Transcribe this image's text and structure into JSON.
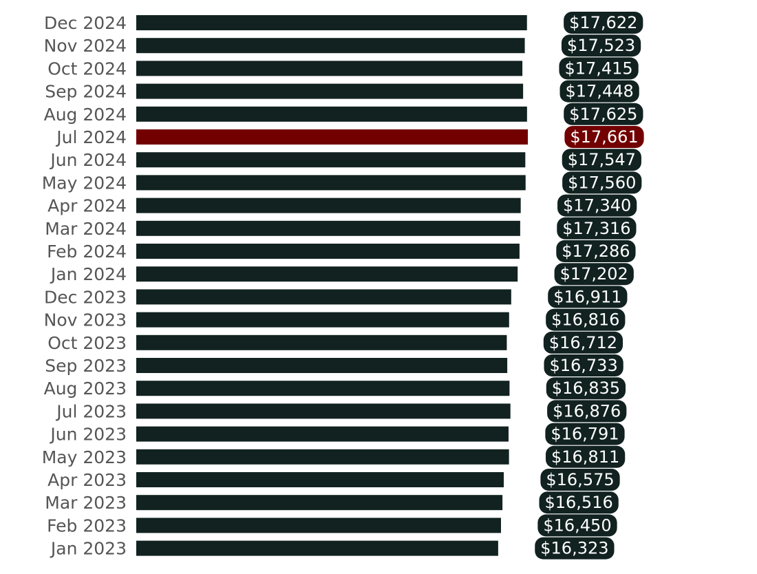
{
  "chart_data": {
    "type": "bar",
    "orientation": "horizontal",
    "title": "",
    "xlabel": "",
    "ylabel": "",
    "grid": false,
    "legend": "none",
    "xlim": [
      0,
      17661
    ],
    "categories": [
      "Dec 2024",
      "Nov 2024",
      "Oct 2024",
      "Sep 2024",
      "Aug 2024",
      "Jul 2024",
      "Jun 2024",
      "May 2024",
      "Apr 2024",
      "Mar 2024",
      "Feb 2024",
      "Jan 2024",
      "Dec 2023",
      "Nov 2023",
      "Oct 2023",
      "Sep 2023",
      "Aug 2023",
      "Jul 2023",
      "Jun 2023",
      "May 2023",
      "Apr 2023",
      "Mar 2023",
      "Feb 2023",
      "Jan 2023"
    ],
    "values": [
      17622,
      17523,
      17415,
      17448,
      17625,
      17661,
      17547,
      17560,
      17340,
      17316,
      17286,
      17202,
      16911,
      16816,
      16712,
      16733,
      16835,
      16876,
      16791,
      16811,
      16575,
      16516,
      16450,
      16323
    ],
    "value_labels": [
      "$17,622",
      "$17,523",
      "$17,415",
      "$17,448",
      "$17,625",
      "$17,661",
      "$17,547",
      "$17,560",
      "$17,340",
      "$17,316",
      "$17,286",
      "$17,202",
      "$16,911",
      "$16,816",
      "$16,712",
      "$16,733",
      "$16,835",
      "$16,876",
      "$16,791",
      "$16,811",
      "$16,575",
      "$16,516",
      "$16,450",
      "$16,323"
    ],
    "highlight_category": "Jul 2024",
    "colors": {
      "bar": "#112220",
      "highlight": "#720000",
      "category_text": "#555555",
      "value_text": "#ffffff"
    }
  }
}
